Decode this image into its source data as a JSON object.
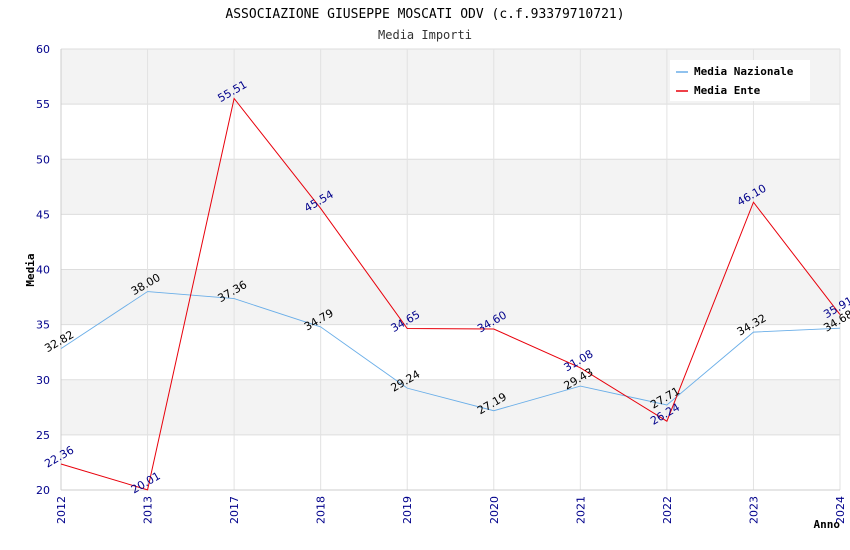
{
  "chart_data": {
    "type": "line",
    "title": "ASSOCIAZIONE GIUSEPPE MOSCATI ODV (c.f.93379710721)",
    "subtitle": "Media Importi",
    "xlabel": "Anno",
    "ylabel": "Media",
    "categories": [
      "2012",
      "2013",
      "2017",
      "2018",
      "2019",
      "2020",
      "2021",
      "2022",
      "2023",
      "2024"
    ],
    "ylim": [
      20,
      60
    ],
    "yticks": [
      20,
      25,
      30,
      35,
      40,
      45,
      50,
      55,
      60
    ],
    "grid": true,
    "legend_position": "top-right",
    "series": [
      {
        "name": "Media Nazionale",
        "color": "#6aaee8",
        "values": [
          32.82,
          38.0,
          37.36,
          34.79,
          29.24,
          27.19,
          29.43,
          27.71,
          34.32,
          34.68
        ],
        "labels": [
          "32.82",
          "38.00",
          "37.36",
          "34.79",
          "29.24",
          "27.19",
          "29.43",
          "27.71",
          "34.32",
          "34.68"
        ]
      },
      {
        "name": "Media Ente",
        "color": "#e8000b",
        "values": [
          22.36,
          20.01,
          55.51,
          45.54,
          34.65,
          34.6,
          31.08,
          26.24,
          46.1,
          35.91
        ],
        "labels": [
          "22.36",
          "20.01",
          "55.51",
          "45.54",
          "34.65",
          "34.60",
          "31.08",
          "26.24",
          "46.10",
          "35.91"
        ]
      }
    ]
  }
}
